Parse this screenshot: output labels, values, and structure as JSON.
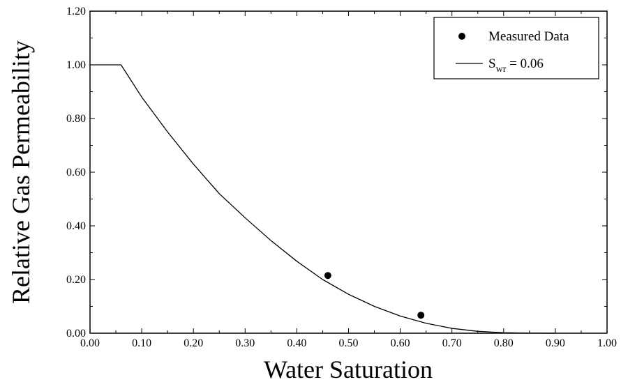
{
  "chart_data": {
    "type": "scatter",
    "title": "",
    "xlabel": "Water Saturation",
    "ylabel": "Relative Gas Permeability",
    "xlim": [
      0.0,
      1.0
    ],
    "ylim": [
      0.0,
      1.2
    ],
    "x_ticks": [
      "0.00",
      "0.10",
      "0.20",
      "0.30",
      "0.40",
      "0.50",
      "0.60",
      "0.70",
      "0.80",
      "0.90",
      "1.00"
    ],
    "y_ticks": [
      "0.00",
      "0.20",
      "0.40",
      "0.60",
      "0.80",
      "1.00",
      "1.20"
    ],
    "grid": false,
    "legend_position": "top-right",
    "series": [
      {
        "name": "Measured Data",
        "kind": "points",
        "marker": "filled-circle",
        "x": [
          0.46,
          0.64
        ],
        "y": [
          0.215,
          0.067
        ]
      },
      {
        "name": "S_wr = 0.06",
        "legend_main": "S",
        "legend_sub": "wr",
        "legend_rest": " = 0.06",
        "kind": "line",
        "x": [
          0.0,
          0.06,
          0.1,
          0.15,
          0.2,
          0.25,
          0.3,
          0.35,
          0.4,
          0.45,
          0.5,
          0.55,
          0.6,
          0.65,
          0.7,
          0.75,
          0.8,
          0.85,
          0.9
        ],
        "y": [
          1.0,
          1.0,
          0.88,
          0.75,
          0.63,
          0.52,
          0.43,
          0.345,
          0.268,
          0.2,
          0.145,
          0.1,
          0.064,
          0.037,
          0.018,
          0.007,
          0.002,
          0.0003,
          0.0
        ]
      }
    ]
  }
}
